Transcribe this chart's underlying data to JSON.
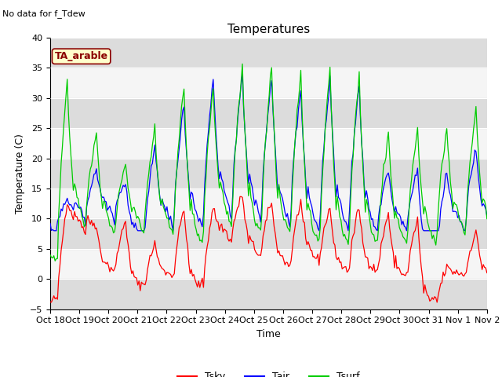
{
  "title": "Temperatures",
  "ylabel": "Temperature (C)",
  "xlabel": "Time",
  "ylim": [
    -5,
    40
  ],
  "yticks": [
    -5,
    0,
    5,
    10,
    15,
    20,
    25,
    30,
    35,
    40
  ],
  "xtick_labels": [
    "Oct 18",
    "Oct 19",
    "Oct 20",
    "Oct 21",
    "Oct 22",
    "Oct 23",
    "Oct 24",
    "Oct 25",
    "Oct 26",
    "Oct 27",
    "Oct 28",
    "Oct 29",
    "Oct 30",
    "Oct 31",
    "Nov 1",
    "Nov 2"
  ],
  "no_data_text": "No data for f_Tdew",
  "annotation_text": "TA_arable",
  "annotation_color": "#8B0000",
  "annotation_bg": "#FFFFCC",
  "bg_band_color": "#DCDCDC",
  "bg_base_color": "#F5F5F5",
  "line_colors": {
    "Tsky": "#FF0000",
    "Tair": "#0000FF",
    "Tsurf": "#00CC00"
  },
  "legend_labels": [
    "Tsky",
    "Tair",
    "Tsurf"
  ],
  "title_fontsize": 11,
  "axis_fontsize": 9,
  "tick_fontsize": 8,
  "n_days": 15,
  "hours_per_day": 24,
  "tsky_night_vals": [
    -4,
    10,
    2,
    -1,
    1,
    -1,
    8,
    5,
    3,
    4,
    2,
    2,
    1,
    -4,
    1
  ],
  "tsky_day_peaks": [
    13,
    9,
    10,
    6,
    12,
    12,
    14,
    13,
    13,
    12,
    12,
    11,
    10,
    2,
    8
  ],
  "tair_night_vals": [
    9,
    12,
    12,
    8,
    11,
    11,
    14,
    13,
    12,
    11,
    11,
    10,
    10,
    4,
    10
  ],
  "tair_day_peaks": [
    13,
    18,
    16,
    22,
    29,
    33,
    34,
    33,
    31,
    33,
    32,
    18,
    18,
    18,
    22
  ],
  "tsurf_night_vals": [
    4,
    12,
    10,
    10,
    10,
    8,
    12,
    10,
    10,
    8,
    8,
    8,
    8,
    8,
    10
  ],
  "tsurf_day_peaks": [
    33,
    24,
    19,
    25,
    32,
    32,
    35,
    35,
    34,
    35,
    34,
    24,
    25,
    25,
    28
  ]
}
